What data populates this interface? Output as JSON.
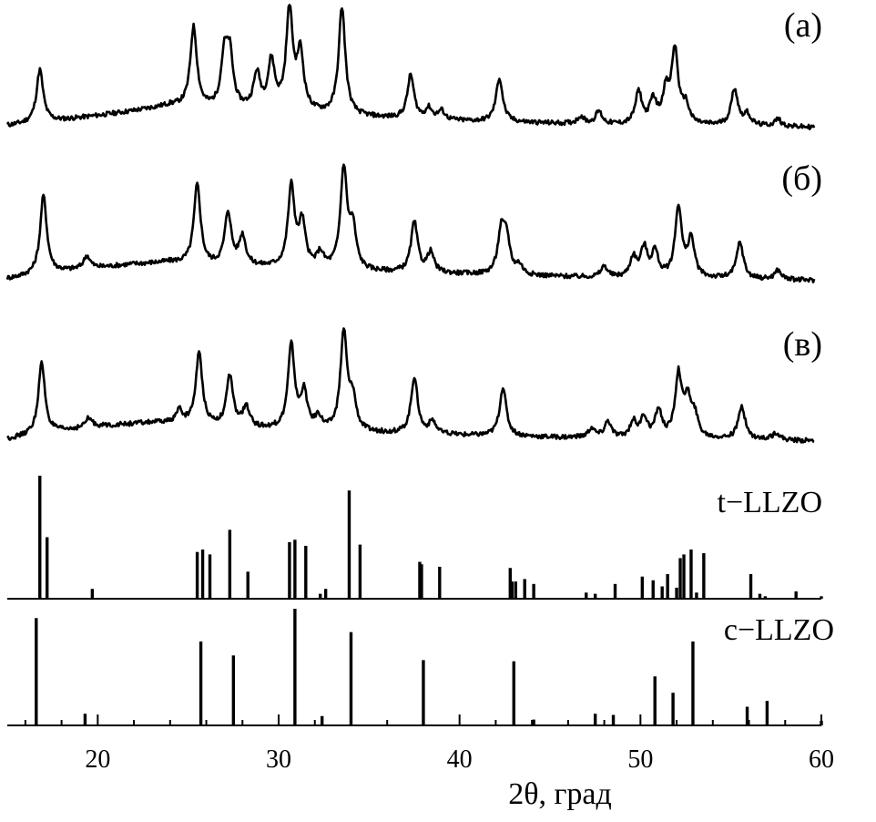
{
  "chart_data": {
    "type": "line",
    "xlabel": "2θ, град",
    "xlim": [
      15,
      60
    ],
    "xticks": [
      20,
      30,
      40,
      50,
      60
    ],
    "grid": false,
    "patterns": [
      {
        "label": "(а)",
        "peaks": [
          [
            16.8,
            58
          ],
          [
            25.3,
            88
          ],
          [
            27.0,
            55
          ],
          [
            27.3,
            55
          ],
          [
            28.8,
            38
          ],
          [
            29.6,
            52
          ],
          [
            30.6,
            108
          ],
          [
            31.2,
            62
          ],
          [
            33.5,
            118
          ],
          [
            37.3,
            48
          ],
          [
            38.3,
            12
          ],
          [
            39.0,
            10
          ],
          [
            42.2,
            48
          ],
          [
            46.7,
            8
          ],
          [
            47.7,
            14
          ],
          [
            49.9,
            36
          ],
          [
            50.7,
            26
          ],
          [
            51.4,
            34
          ],
          [
            51.9,
            80
          ],
          [
            52.5,
            20
          ],
          [
            55.2,
            40
          ],
          [
            55.9,
            12
          ],
          [
            57.6,
            8
          ]
        ],
        "background": [
          [
            15,
            4
          ],
          [
            18,
            10
          ],
          [
            22,
            20
          ],
          [
            24,
            26
          ],
          [
            26,
            22
          ],
          [
            30,
            20
          ],
          [
            34,
            14
          ],
          [
            38,
            10
          ],
          [
            42,
            8
          ],
          [
            46,
            6
          ],
          [
            50,
            4
          ],
          [
            55,
            4
          ],
          [
            60,
            2
          ]
        ]
      },
      {
        "label": "(б)",
        "peaks": [
          [
            17.0,
            86
          ],
          [
            19.4,
            14
          ],
          [
            25.5,
            88
          ],
          [
            27.2,
            58
          ],
          [
            28.0,
            32
          ],
          [
            30.7,
            88
          ],
          [
            31.3,
            48
          ],
          [
            32.3,
            16
          ],
          [
            33.6,
            110
          ],
          [
            34.1,
            44
          ],
          [
            37.5,
            55
          ],
          [
            38.4,
            22
          ],
          [
            42.3,
            45
          ],
          [
            42.6,
            38
          ],
          [
            43.3,
            10
          ],
          [
            48.0,
            12
          ],
          [
            49.6,
            22
          ],
          [
            50.2,
            32
          ],
          [
            50.8,
            28
          ],
          [
            52.1,
            78
          ],
          [
            52.8,
            42
          ],
          [
            55.5,
            40
          ],
          [
            57.6,
            10
          ]
        ],
        "background": [
          [
            15,
            4
          ],
          [
            18,
            12
          ],
          [
            22,
            20
          ],
          [
            24,
            22
          ],
          [
            26,
            18
          ],
          [
            30,
            16
          ],
          [
            34,
            12
          ],
          [
            38,
            10
          ],
          [
            42,
            8
          ],
          [
            46,
            6
          ],
          [
            50,
            4
          ],
          [
            55,
            4
          ],
          [
            60,
            2
          ]
        ]
      },
      {
        "label": "(в)",
        "peaks": [
          [
            16.9,
            78
          ],
          [
            19.5,
            10
          ],
          [
            24.5,
            14
          ],
          [
            25.6,
            78
          ],
          [
            27.3,
            55
          ],
          [
            28.2,
            22
          ],
          [
            30.7,
            92
          ],
          [
            31.4,
            40
          ],
          [
            32.2,
            14
          ],
          [
            33.6,
            108
          ],
          [
            34.1,
            34
          ],
          [
            37.5,
            62
          ],
          [
            38.5,
            14
          ],
          [
            42.4,
            54
          ],
          [
            47.3,
            10
          ],
          [
            48.2,
            18
          ],
          [
            49.6,
            18
          ],
          [
            50.2,
            22
          ],
          [
            51.0,
            30
          ],
          [
            52.1,
            68
          ],
          [
            52.6,
            40
          ],
          [
            53.0,
            22
          ],
          [
            55.6,
            36
          ],
          [
            57.5,
            8
          ]
        ],
        "background": [
          [
            15,
            4
          ],
          [
            17,
            10
          ],
          [
            20,
            18
          ],
          [
            23,
            22
          ],
          [
            25,
            20
          ],
          [
            28,
            16
          ],
          [
            32,
            12
          ],
          [
            36,
            10
          ],
          [
            40,
            8
          ],
          [
            45,
            6
          ],
          [
            50,
            4
          ],
          [
            55,
            4
          ],
          [
            60,
            2
          ]
        ]
      }
    ],
    "references": [
      {
        "label": "t−LLZO",
        "sticks": [
          [
            16.8,
            100
          ],
          [
            17.2,
            50
          ],
          [
            19.7,
            8
          ],
          [
            25.5,
            38
          ],
          [
            25.8,
            40
          ],
          [
            26.2,
            36
          ],
          [
            27.3,
            56
          ],
          [
            28.3,
            22
          ],
          [
            30.6,
            46
          ],
          [
            30.9,
            48
          ],
          [
            31.5,
            43
          ],
          [
            32.3,
            4
          ],
          [
            32.6,
            8
          ],
          [
            33.9,
            88
          ],
          [
            34.5,
            44
          ],
          [
            37.8,
            30
          ],
          [
            37.9,
            28
          ],
          [
            38.9,
            26
          ],
          [
            42.8,
            25
          ],
          [
            42.9,
            14
          ],
          [
            43.1,
            14
          ],
          [
            43.6,
            16
          ],
          [
            44.1,
            12
          ],
          [
            47.0,
            5
          ],
          [
            47.5,
            4
          ],
          [
            48.6,
            12
          ],
          [
            50.1,
            18
          ],
          [
            50.7,
            15
          ],
          [
            51.2,
            10
          ],
          [
            51.5,
            20
          ],
          [
            52.0,
            9
          ],
          [
            52.2,
            33
          ],
          [
            52.4,
            36
          ],
          [
            52.8,
            40
          ],
          [
            53.1,
            5
          ],
          [
            53.5,
            37
          ],
          [
            56.1,
            20
          ],
          [
            56.6,
            4
          ],
          [
            56.9,
            2
          ],
          [
            58.6,
            6
          ],
          [
            60.0,
            2
          ]
        ]
      },
      {
        "label": "c−LLZO",
        "sticks": [
          [
            16.6,
            92
          ],
          [
            19.3,
            10
          ],
          [
            25.7,
            72
          ],
          [
            27.5,
            60
          ],
          [
            30.9,
            100
          ],
          [
            32.4,
            8
          ],
          [
            34.0,
            80
          ],
          [
            38.0,
            56
          ],
          [
            43.0,
            55
          ],
          [
            44.1,
            5
          ],
          [
            47.5,
            10
          ],
          [
            48.5,
            9
          ],
          [
            50.8,
            42
          ],
          [
            51.8,
            28
          ],
          [
            52.9,
            72
          ],
          [
            55.9,
            16
          ],
          [
            57.0,
            21
          ],
          [
            60.0,
            4
          ]
        ]
      }
    ]
  }
}
